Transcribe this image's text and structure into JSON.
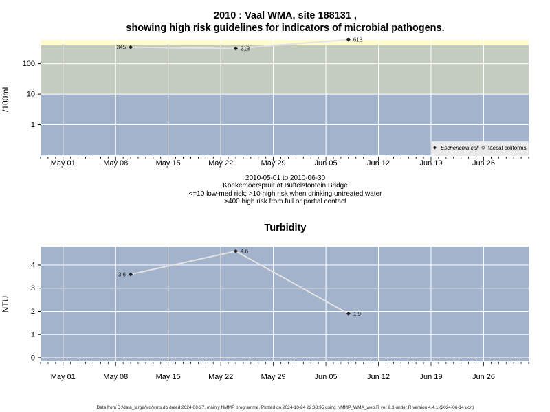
{
  "title_line1": "2010 : Vaal WMA, site 188131 ,",
  "title_line2": "showing high risk guidelines for indicators of microbial pathogens.",
  "subtitle_lines": [
    "2010-05-01 to 2010-06-30",
    "Koekemoerspruit at Buffelsfontein Bridge",
    "<=10 low-med risk; >10 high risk when drinking untreated water",
    ">400 high risk from full or partial contact"
  ],
  "footer": "Data from D:/data_large/wq/wms.db dated 2024-08-27, mainly NMMP programme. Plotted on 2024-10-24 22:38:35 using NMMP_WMA_web.R ver 9.3 under R version 4.4.1 (2024-06-14 ucrt)",
  "colors": {
    "band_low": "#a3b3cc",
    "band_mid": "#c4cbbf",
    "band_high": "#fefbce",
    "grid": "#ffffff",
    "line": "#e3e3e3",
    "marker": "#222222"
  },
  "chart_data": [
    {
      "type": "line",
      "title": "",
      "ylabel": "/100mL",
      "yscale": "log",
      "ylim": [
        0.1,
        600
      ],
      "yticks": [
        1,
        10,
        100
      ],
      "ytick_labels": [
        "1",
        "10",
        "100"
      ],
      "x_range": [
        "2010-04-28",
        "2010-07-02"
      ],
      "xticks": [
        "2010-05-01",
        "2010-05-08",
        "2010-05-15",
        "2010-05-22",
        "2010-05-29",
        "2010-06-05",
        "2010-06-12",
        "2010-06-19",
        "2010-06-26"
      ],
      "xtick_labels": [
        "May 01",
        "May 08",
        "May 15",
        "May 22",
        "May 29",
        "Jun 05",
        "Jun 12",
        "Jun 19",
        "Jun 26"
      ],
      "risk_bands": [
        {
          "from": 0.1,
          "to": 10,
          "level": "low-med"
        },
        {
          "from": 10,
          "to": 400,
          "level": "high (drinking)"
        },
        {
          "from": 400,
          "to": 600,
          "level": "high (contact)"
        }
      ],
      "legend": {
        "position": "bottom-right",
        "entries": [
          "Escherichia coli",
          "faecal coliforms"
        ]
      },
      "series": [
        {
          "name": "Escherichia coli",
          "x": [
            "2010-05-10",
            "2010-05-24",
            "2010-06-08"
          ],
          "y": [
            345,
            313,
            613
          ],
          "labels": [
            "345",
            "313",
            "613"
          ]
        }
      ]
    },
    {
      "type": "line",
      "title": "Turbidity",
      "ylabel": "NTU",
      "yscale": "linear",
      "ylim": [
        -0.15,
        4.8
      ],
      "yticks": [
        0,
        1,
        2,
        3,
        4
      ],
      "ytick_labels": [
        "0",
        "1",
        "2",
        "3",
        "4"
      ],
      "x_range": [
        "2010-04-28",
        "2010-07-02"
      ],
      "xticks": [
        "2010-05-01",
        "2010-05-08",
        "2010-05-15",
        "2010-05-22",
        "2010-05-29",
        "2010-06-05",
        "2010-06-12",
        "2010-06-19",
        "2010-06-26"
      ],
      "xtick_labels": [
        "May 01",
        "May 08",
        "May 15",
        "May 22",
        "May 29",
        "Jun 05",
        "Jun 12",
        "Jun 19",
        "Jun 26"
      ],
      "series": [
        {
          "name": "",
          "x": [
            "2010-05-10",
            "2010-05-24",
            "2010-06-08"
          ],
          "y": [
            3.6,
            4.6,
            1.9
          ],
          "labels": [
            "3.6",
            "4.6",
            "1.9"
          ]
        }
      ]
    }
  ]
}
